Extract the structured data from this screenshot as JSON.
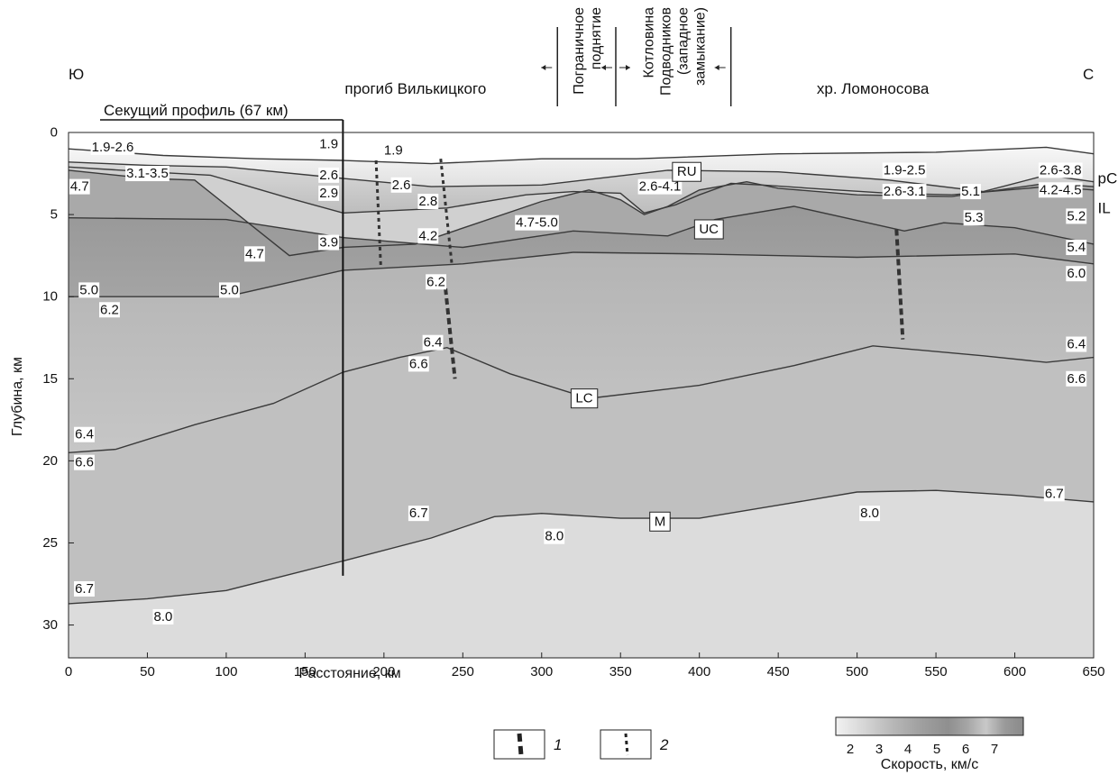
{
  "chart_data": {
    "type": "section",
    "xlabel": "Расстояние, км",
    "ylabel": "Глубина, км",
    "xlim": [
      0,
      650
    ],
    "ylim": [
      0,
      32
    ],
    "x_ticks": [
      0,
      50,
      100,
      150,
      200,
      250,
      300,
      350,
      400,
      450,
      500,
      550,
      600,
      650
    ],
    "y_ticks": [
      0,
      5,
      10,
      15,
      20,
      25,
      30
    ],
    "direction_left": "Ю",
    "direction_right": "С",
    "regions": [
      {
        "label": "прогиб Вилькицкого",
        "x": 220
      },
      {
        "label": "хр. Ломоносова",
        "x": 510
      }
    ],
    "vertical_regions": [
      {
        "lines": [
          "Пограничное",
          "поднятие"
        ],
        "x_from": 310,
        "x_to": 347
      },
      {
        "lines": [
          "Котловина",
          "Подводников",
          "(западное",
          "замыкание)"
        ],
        "x_from": 347,
        "x_to": 420
      }
    ],
    "crossing_profile": {
      "label": "Секущий профиль (67 км)",
      "x_from": 20,
      "x": 174,
      "depth_to": 27
    },
    "interfaces": [
      {
        "name": "seafloor",
        "points": [
          [
            0,
            1.0
          ],
          [
            60,
            1.4
          ],
          [
            120,
            1.6
          ],
          [
            174,
            1.7
          ],
          [
            230,
            1.9
          ],
          [
            300,
            1.6
          ],
          [
            360,
            1.6
          ],
          [
            450,
            1.3
          ],
          [
            550,
            1.2
          ],
          [
            620,
            0.9
          ],
          [
            650,
            1.3
          ]
        ]
      },
      {
        "name": "RU",
        "points": [
          [
            0,
            1.8
          ],
          [
            50,
            2.0
          ],
          [
            100,
            2.1
          ],
          [
            174,
            2.8
          ],
          [
            230,
            3.3
          ],
          [
            300,
            3.2
          ],
          [
            380,
            2.3
          ],
          [
            450,
            2.4
          ],
          [
            520,
            2.9
          ],
          [
            580,
            3.6
          ],
          [
            620,
            2.6
          ],
          [
            650,
            3.0
          ]
        ]
      },
      {
        "name": "pCU",
        "points": [
          [
            0,
            2.1
          ],
          [
            50,
            2.4
          ],
          [
            90,
            2.6
          ],
          [
            140,
            4.0
          ],
          [
            174,
            4.9
          ],
          [
            240,
            4.6
          ],
          [
            290,
            3.8
          ],
          [
            320,
            3.6
          ],
          [
            350,
            3.7
          ],
          [
            365,
            4.9
          ],
          [
            385,
            4.4
          ],
          [
            400,
            3.8
          ],
          [
            420,
            3.1
          ],
          [
            440,
            3.2
          ],
          [
            470,
            3.4
          ],
          [
            520,
            3.7
          ],
          [
            560,
            3.8
          ],
          [
            620,
            3.3
          ],
          [
            650,
            3.5
          ]
        ]
      },
      {
        "name": "IL",
        "points": [
          [
            0,
            2.3
          ],
          [
            50,
            2.8
          ],
          [
            80,
            2.9
          ],
          [
            140,
            7.5
          ],
          [
            174,
            7.0
          ],
          [
            220,
            6.8
          ],
          [
            260,
            5.5
          ],
          [
            300,
            4.2
          ],
          [
            330,
            3.5
          ],
          [
            350,
            4.1
          ],
          [
            365,
            5.0
          ],
          [
            380,
            4.5
          ],
          [
            400,
            3.5
          ],
          [
            430,
            3.0
          ],
          [
            450,
            3.4
          ],
          [
            500,
            3.8
          ],
          [
            560,
            3.9
          ],
          [
            620,
            3.1
          ],
          [
            650,
            3.3
          ]
        ]
      },
      {
        "name": "UC",
        "points": [
          [
            0,
            5.2
          ],
          [
            100,
            5.3
          ],
          [
            174,
            6.4
          ],
          [
            250,
            7.0
          ],
          [
            320,
            6.0
          ],
          [
            380,
            6.3
          ],
          [
            410,
            5.3
          ],
          [
            460,
            4.5
          ],
          [
            530,
            6.0
          ],
          [
            555,
            5.5
          ],
          [
            600,
            5.8
          ],
          [
            650,
            6.8
          ]
        ]
      },
      {
        "name": "5.0/6.0",
        "points": [
          [
            0,
            10.0
          ],
          [
            100,
            10.0
          ],
          [
            174,
            8.4
          ],
          [
            250,
            8.0
          ],
          [
            320,
            7.3
          ],
          [
            400,
            7.4
          ],
          [
            500,
            7.6
          ],
          [
            600,
            7.4
          ],
          [
            650,
            8.0
          ]
        ]
      },
      {
        "name": "LC",
        "points": [
          [
            0,
            19.5
          ],
          [
            30,
            19.3
          ],
          [
            80,
            17.8
          ],
          [
            130,
            16.5
          ],
          [
            174,
            14.6
          ],
          [
            210,
            13.7
          ],
          [
            240,
            13.1
          ],
          [
            280,
            14.7
          ],
          [
            330,
            16.2
          ],
          [
            400,
            15.4
          ],
          [
            460,
            14.2
          ],
          [
            510,
            13.0
          ],
          [
            580,
            13.6
          ],
          [
            620,
            14.0
          ],
          [
            650,
            13.7
          ]
        ]
      },
      {
        "name": "M",
        "points": [
          [
            0,
            28.7
          ],
          [
            50,
            28.4
          ],
          [
            100,
            27.9
          ],
          [
            174,
            26.1
          ],
          [
            230,
            24.7
          ],
          [
            270,
            23.4
          ],
          [
            300,
            23.2
          ],
          [
            350,
            23.5
          ],
          [
            400,
            23.5
          ],
          [
            450,
            22.7
          ],
          [
            500,
            21.9
          ],
          [
            550,
            21.8
          ],
          [
            600,
            22.1
          ],
          [
            650,
            22.5
          ]
        ]
      }
    ],
    "faults": [
      {
        "type": 2,
        "points": [
          [
            195,
            1.7
          ],
          [
            198,
            8.1
          ]
        ]
      },
      {
        "type": 2,
        "points": [
          [
            236,
            1.6
          ],
          [
            243,
            8.0
          ]
        ]
      },
      {
        "type": 1,
        "points": [
          [
            239,
            9.5
          ],
          [
            245,
            15.0
          ]
        ]
      },
      {
        "type": 1,
        "points": [
          [
            525,
            5.9
          ],
          [
            529,
            12.6
          ]
        ]
      }
    ],
    "boundary_labels": [
      {
        "text": "RU",
        "x": 392,
        "y": 2.4
      },
      {
        "text": "pCU",
        "x": 656,
        "y": 2.8,
        "outside": true
      },
      {
        "text": "IL",
        "x": 656,
        "y": 4.6,
        "outside": true
      },
      {
        "text": "UC",
        "x": 406,
        "y": 5.9
      },
      {
        "text": "LC",
        "x": 327,
        "y": 16.2
      },
      {
        "text": "M",
        "x": 375,
        "y": 23.7
      }
    ],
    "velocity_labels": [
      {
        "text": "1.9-2.6",
        "x": 28,
        "y": 0.9
      },
      {
        "text": "3.1-3.5",
        "x": 50,
        "y": 2.5
      },
      {
        "text": "4.7",
        "x": 7,
        "y": 3.3
      },
      {
        "text": "1.9",
        "x": 165,
        "y": 0.7
      },
      {
        "text": "1.9",
        "x": 206,
        "y": 1.1
      },
      {
        "text": "2.6",
        "x": 165,
        "y": 2.6
      },
      {
        "text": "2.9",
        "x": 165,
        "y": 3.7
      },
      {
        "text": "2.6",
        "x": 211,
        "y": 3.2
      },
      {
        "text": "2.8",
        "x": 228,
        "y": 4.2
      },
      {
        "text": "3.9",
        "x": 165,
        "y": 6.7
      },
      {
        "text": "4.7",
        "x": 118,
        "y": 7.4
      },
      {
        "text": "4.2",
        "x": 228,
        "y": 6.3
      },
      {
        "text": "4.7-5.0",
        "x": 297,
        "y": 5.5
      },
      {
        "text": "2.6-4.1",
        "x": 375,
        "y": 3.3
      },
      {
        "text": "1.9-2.5",
        "x": 530,
        "y": 2.3
      },
      {
        "text": "2.6-3.1",
        "x": 530,
        "y": 3.6
      },
      {
        "text": "5.1",
        "x": 572,
        "y": 3.6
      },
      {
        "text": "5.3",
        "x": 574,
        "y": 5.2
      },
      {
        "text": "2.6-3.8",
        "x": 629,
        "y": 2.3
      },
      {
        "text": "4.2-4.5",
        "x": 629,
        "y": 3.5
      },
      {
        "text": "5.2",
        "x": 639,
        "y": 5.1
      },
      {
        "text": "5.4",
        "x": 639,
        "y": 7.0
      },
      {
        "text": "6.0",
        "x": 639,
        "y": 8.6
      },
      {
        "text": "5.0",
        "x": 13,
        "y": 9.6
      },
      {
        "text": "5.0",
        "x": 102,
        "y": 9.6
      },
      {
        "text": "6.2",
        "x": 26,
        "y": 10.8
      },
      {
        "text": "6.2",
        "x": 233,
        "y": 9.1
      },
      {
        "text": "6.4",
        "x": 231,
        "y": 12.8
      },
      {
        "text": "6.6",
        "x": 222,
        "y": 14.1
      },
      {
        "text": "6.4",
        "x": 639,
        "y": 12.9
      },
      {
        "text": "6.6",
        "x": 639,
        "y": 15.0
      },
      {
        "text": "6.4",
        "x": 10,
        "y": 18.4
      },
      {
        "text": "6.6",
        "x": 10,
        "y": 20.1
      },
      {
        "text": "6.7",
        "x": 222,
        "y": 23.2
      },
      {
        "text": "8.0",
        "x": 308,
        "y": 24.6
      },
      {
        "text": "8.0",
        "x": 508,
        "y": 23.2
      },
      {
        "text": "6.7",
        "x": 625,
        "y": 22.0
      },
      {
        "text": "6.7",
        "x": 10,
        "y": 27.8
      },
      {
        "text": "8.0",
        "x": 60,
        "y": 29.5
      }
    ],
    "legend": [
      {
        "key": "1",
        "style": "thick-dashed"
      },
      {
        "key": "2",
        "style": "thin-dashed"
      }
    ],
    "colorbar": {
      "label": "Скорость, км/с",
      "ticks": [
        2,
        3,
        4,
        5,
        6,
        7
      ],
      "range": [
        1.5,
        8.0
      ]
    }
  }
}
